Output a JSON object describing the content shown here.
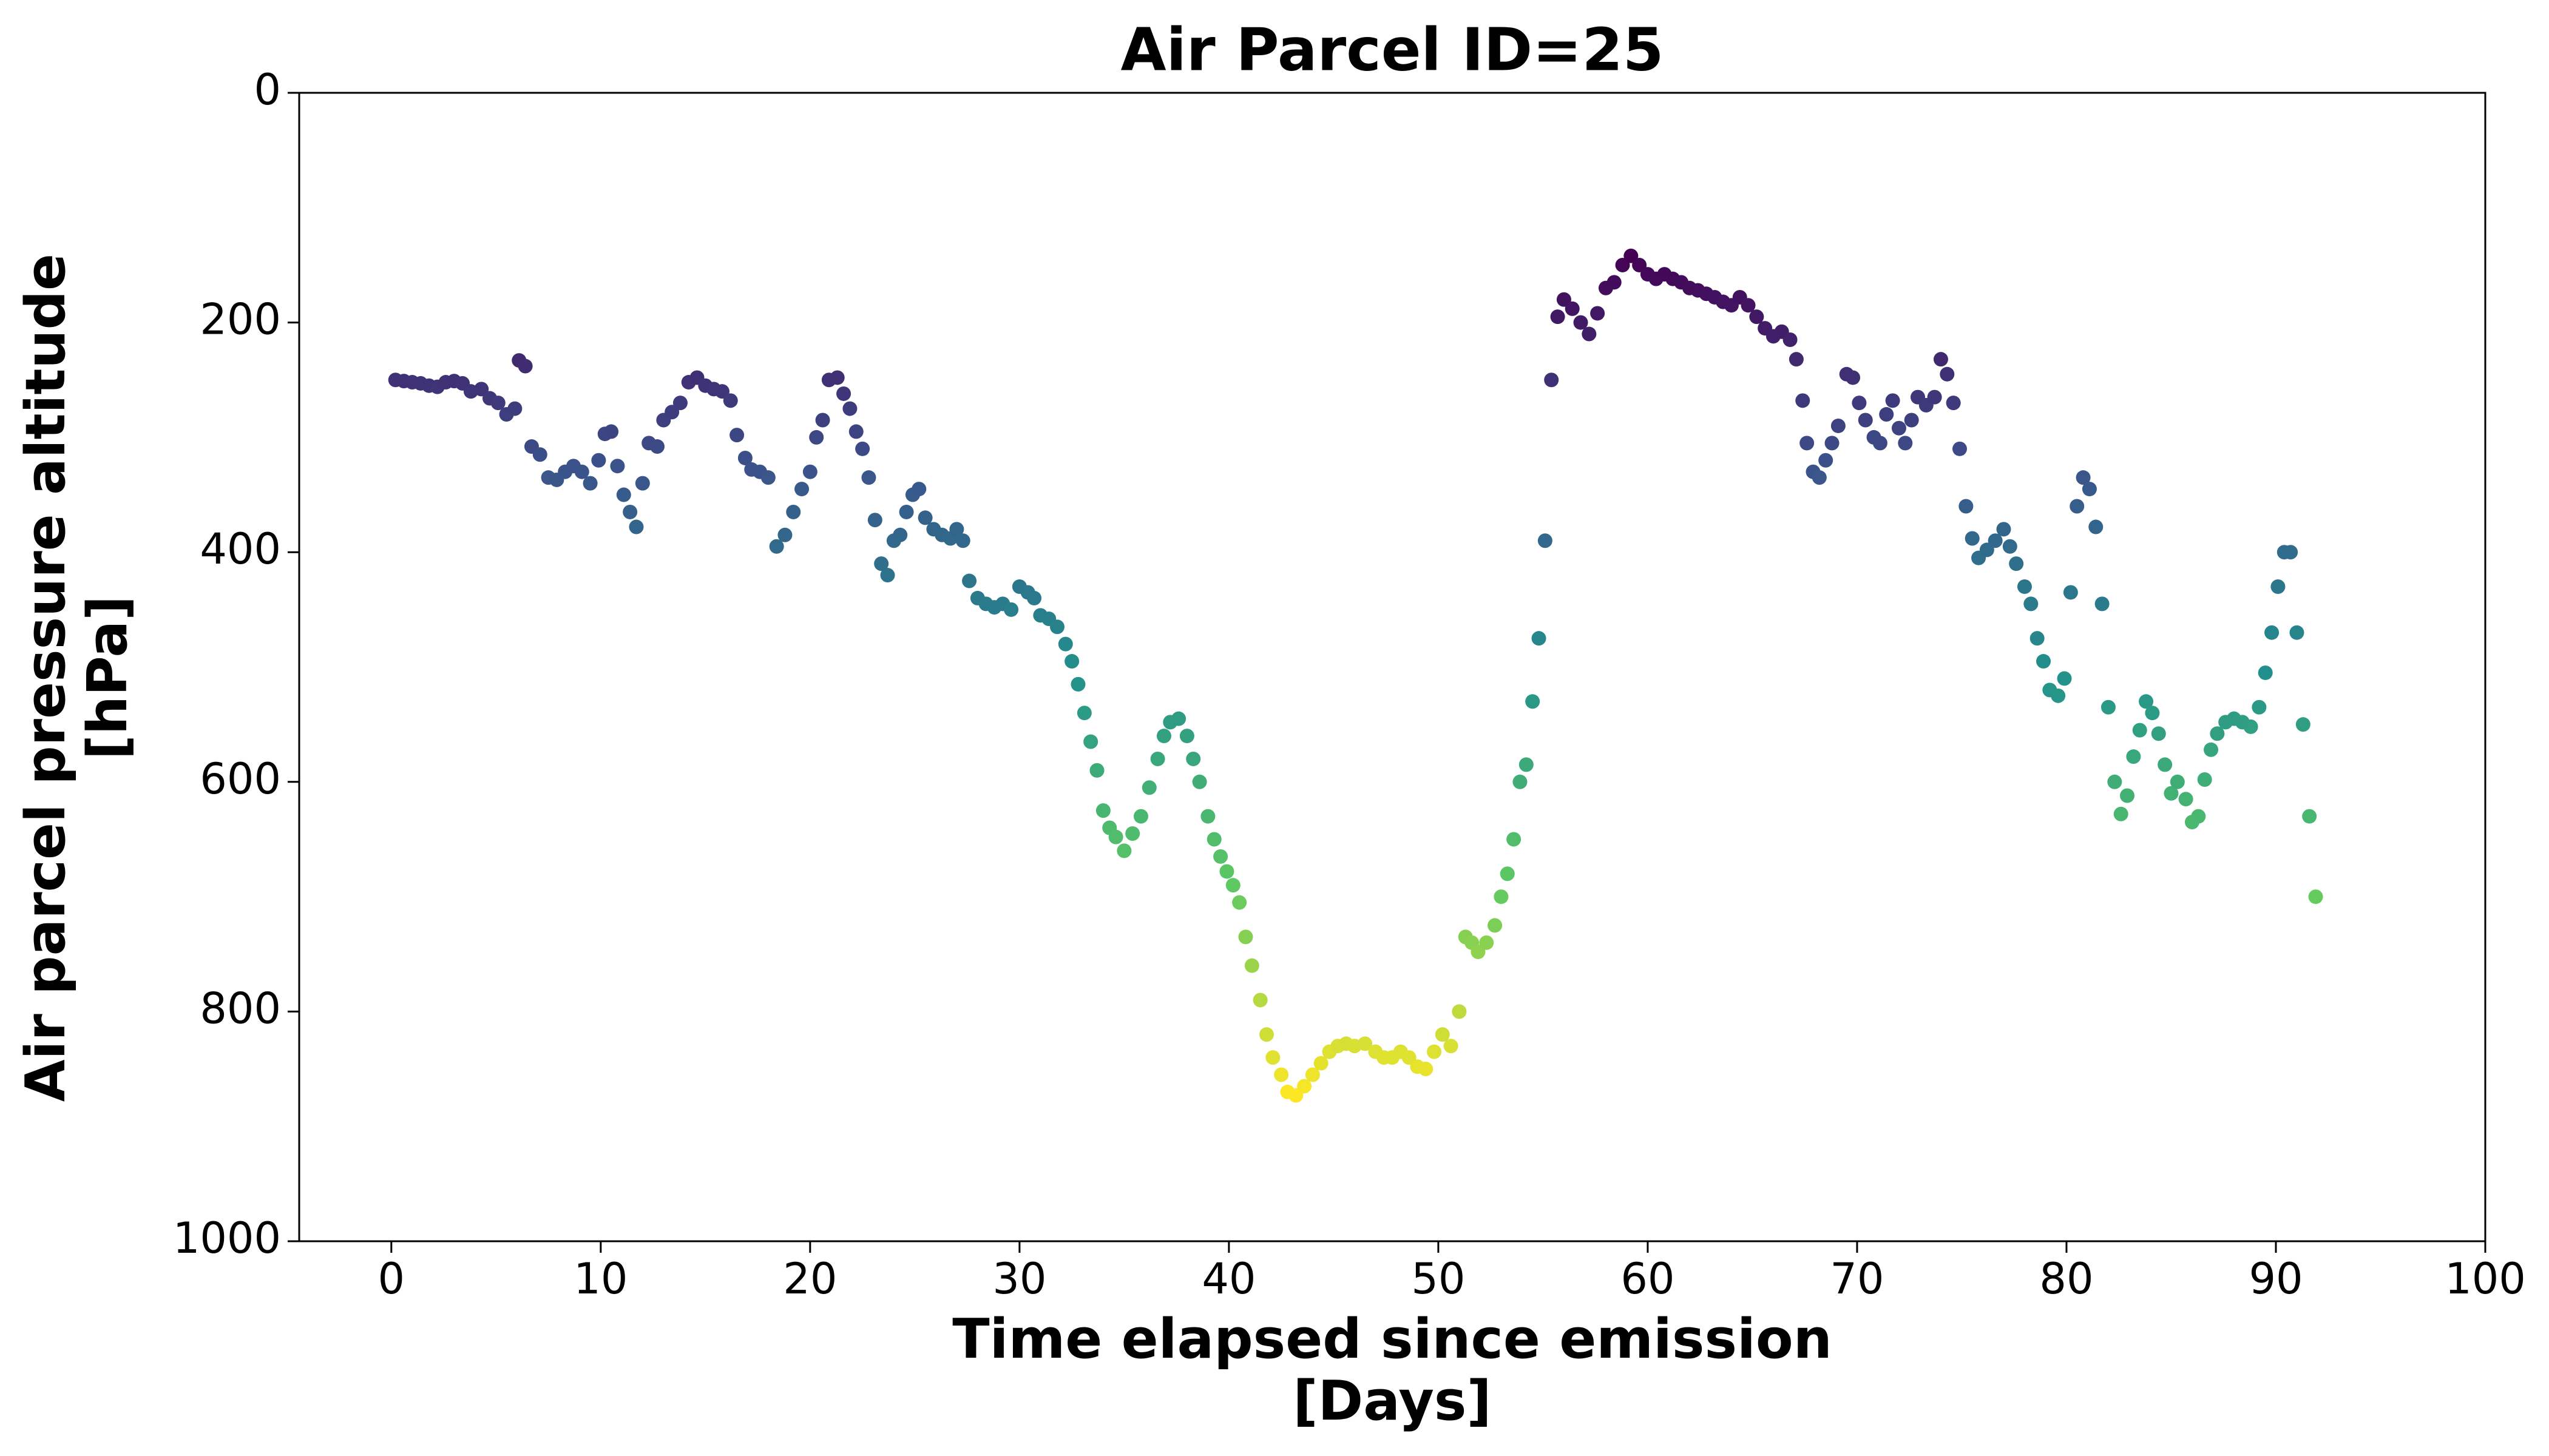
{
  "chart_data": {
    "type": "scatter",
    "title": "Air Parcel ID=25",
    "xlabel": [
      "Time elapsed since emission",
      "[Days]"
    ],
    "ylabel": [
      "Air parcel pressure altitude",
      "[hPa]"
    ],
    "colormap": "viridis",
    "xlim": [
      -4.4,
      100
    ],
    "xticks": [
      0,
      10,
      20,
      30,
      40,
      50,
      60,
      70,
      80,
      90,
      100
    ],
    "ylim": [
      1000,
      0
    ],
    "yticks": [
      0,
      200,
      400,
      600,
      800,
      1000
    ],
    "x": [
      0.2,
      0.6,
      1.0,
      1.4,
      1.8,
      2.2,
      2.6,
      3.0,
      3.4,
      3.8,
      4.3,
      4.7,
      5.1,
      5.5,
      5.9,
      6.1,
      6.4,
      6.7,
      7.1,
      7.5,
      7.9,
      8.3,
      8.7,
      9.1,
      9.5,
      9.9,
      10.2,
      10.5,
      10.8,
      11.1,
      11.4,
      11.7,
      12.0,
      12.3,
      12.7,
      13.0,
      13.4,
      13.8,
      14.2,
      14.6,
      15.0,
      15.4,
      15.8,
      16.2,
      16.5,
      16.9,
      17.2,
      17.6,
      18.0,
      18.4,
      18.8,
      19.2,
      19.6,
      20.0,
      20.3,
      20.6,
      20.9,
      21.3,
      21.6,
      21.9,
      22.2,
      22.5,
      22.8,
      23.1,
      23.4,
      23.7,
      24.0,
      24.3,
      24.6,
      24.9,
      25.2,
      25.5,
      25.9,
      26.3,
      26.7,
      27.0,
      27.3,
      27.6,
      28.0,
      28.4,
      28.8,
      29.2,
      29.6,
      30.0,
      30.4,
      30.7,
      31.0,
      31.4,
      31.8,
      32.2,
      32.5,
      32.8,
      33.1,
      33.4,
      33.7,
      34.0,
      34.3,
      34.6,
      35.0,
      35.4,
      35.8,
      36.2,
      36.6,
      36.9,
      37.2,
      37.6,
      38.0,
      38.3,
      38.6,
      39.0,
      39.3,
      39.6,
      39.9,
      40.2,
      40.5,
      40.8,
      41.1,
      41.5,
      41.8,
      42.1,
      42.5,
      42.8,
      43.2,
      43.6,
      44.0,
      44.4,
      44.8,
      45.2,
      45.6,
      46.0,
      46.5,
      47.0,
      47.4,
      47.8,
      48.2,
      48.6,
      49.0,
      49.4,
      49.8,
      50.2,
      50.6,
      51.0,
      51.3,
      51.6,
      51.9,
      52.3,
      52.7,
      53.0,
      53.3,
      53.6,
      53.9,
      54.2,
      54.5,
      54.8,
      55.1,
      55.4,
      55.7,
      56.0,
      56.4,
      56.8,
      57.2,
      57.6,
      58.0,
      58.4,
      58.8,
      59.2,
      59.6,
      60.0,
      60.4,
      60.8,
      61.2,
      61.6,
      62.0,
      62.4,
      62.8,
      63.2,
      63.6,
      64.0,
      64.4,
      64.8,
      65.2,
      65.6,
      66.0,
      66.4,
      66.8,
      67.1,
      67.4,
      67.6,
      67.9,
      68.2,
      68.5,
      68.8,
      69.1,
      69.5,
      69.8,
      70.1,
      70.4,
      70.8,
      71.1,
      71.4,
      71.7,
      72.0,
      72.3,
      72.6,
      72.9,
      73.3,
      73.7,
      74.0,
      74.3,
      74.6,
      74.9,
      75.2,
      75.5,
      75.8,
      76.2,
      76.6,
      77.0,
      77.3,
      77.6,
      78.0,
      78.3,
      78.6,
      78.9,
      79.2,
      79.6,
      79.9,
      80.2,
      80.5,
      80.8,
      81.1,
      81.4,
      81.7,
      82.0,
      82.3,
      82.6,
      82.9,
      83.2,
      83.5,
      83.8,
      84.1,
      84.4,
      84.7,
      85.0,
      85.3,
      85.7,
      86.0,
      86.3,
      86.6,
      86.9,
      87.2,
      87.6,
      88.0,
      88.4,
      88.8,
      89.2,
      89.5,
      89.8,
      90.1,
      90.4,
      90.7,
      91.0,
      91.3,
      91.6,
      91.9
    ],
    "values": [
      250,
      251,
      252,
      253,
      255,
      256,
      252,
      251,
      253,
      260,
      258,
      266,
      270,
      280,
      275,
      233,
      238,
      308,
      315,
      335,
      337,
      330,
      325,
      330,
      340,
      320,
      297,
      295,
      325,
      350,
      365,
      378,
      340,
      305,
      308,
      285,
      278,
      270,
      252,
      248,
      255,
      258,
      260,
      268,
      298,
      318,
      328,
      330,
      335,
      395,
      385,
      365,
      345,
      330,
      300,
      285,
      250,
      248,
      262,
      275,
      295,
      310,
      335,
      372,
      410,
      420,
      390,
      385,
      365,
      350,
      345,
      370,
      380,
      385,
      388,
      380,
      390,
      425,
      440,
      445,
      448,
      445,
      450,
      430,
      435,
      440,
      455,
      458,
      465,
      480,
      495,
      515,
      540,
      565,
      590,
      625,
      640,
      648,
      660,
      645,
      630,
      605,
      580,
      560,
      548,
      545,
      560,
      580,
      600,
      630,
      650,
      665,
      678,
      690,
      705,
      735,
      760,
      790,
      820,
      840,
      855,
      870,
      873,
      865,
      855,
      845,
      835,
      830,
      828,
      830,
      828,
      835,
      840,
      840,
      835,
      840,
      848,
      850,
      835,
      820,
      830,
      800,
      735,
      740,
      748,
      740,
      725,
      700,
      680,
      650,
      600,
      585,
      530,
      475,
      390,
      250,
      195,
      180,
      188,
      200,
      210,
      192,
      170,
      165,
      150,
      142,
      150,
      158,
      162,
      158,
      162,
      165,
      170,
      172,
      175,
      178,
      182,
      185,
      178,
      185,
      195,
      205,
      212,
      208,
      215,
      232,
      268,
      305,
      330,
      335,
      320,
      305,
      290,
      245,
      248,
      270,
      285,
      300,
      305,
      280,
      268,
      292,
      305,
      285,
      265,
      272,
      265,
      232,
      245,
      270,
      310,
      360,
      388,
      405,
      398,
      390,
      380,
      395,
      410,
      430,
      445,
      475,
      495,
      520,
      525,
      510,
      435,
      360,
      335,
      345,
      378,
      445,
      535,
      600,
      628,
      612,
      578,
      555,
      530,
      540,
      558,
      585,
      610,
      600,
      615,
      635,
      630,
      598,
      572,
      558,
      548,
      545,
      548,
      552,
      535,
      505,
      470,
      430,
      400,
      400,
      470,
      550,
      630,
      700
    ]
  }
}
